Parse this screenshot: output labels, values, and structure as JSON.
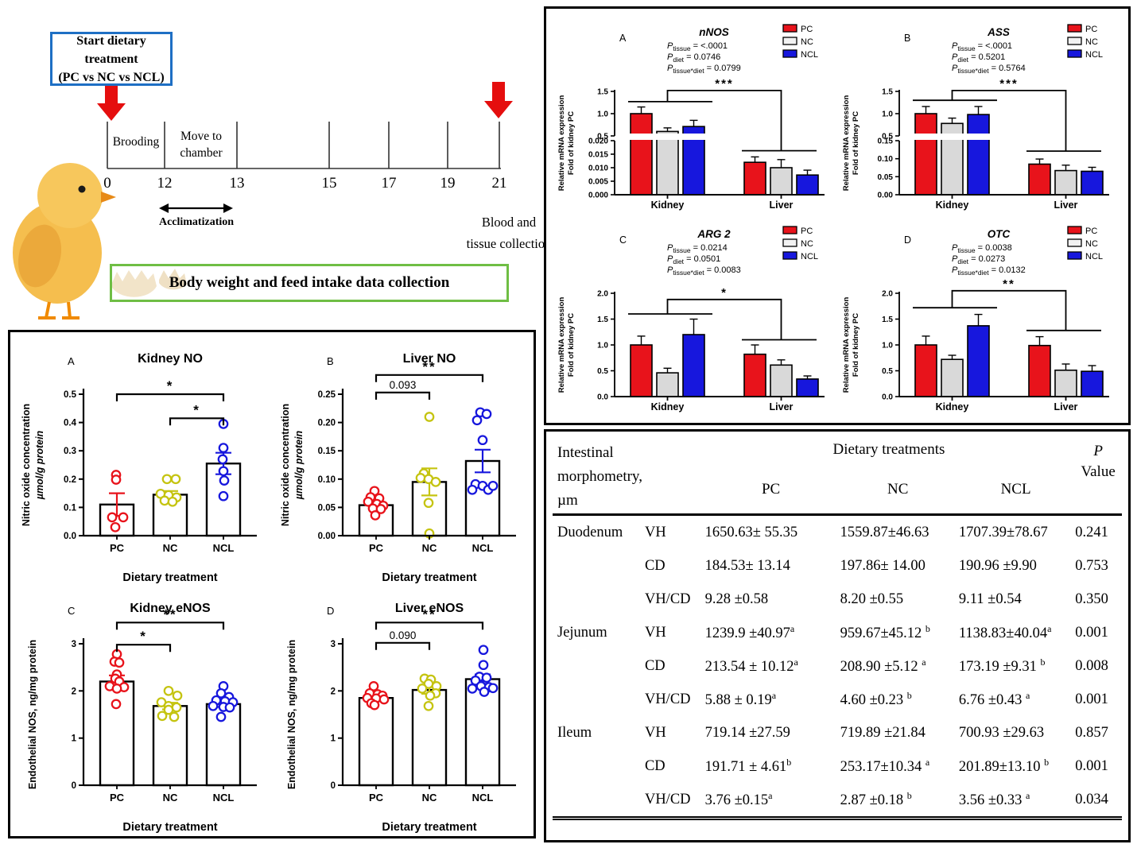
{
  "timeline": {
    "start_box_line1": "Start dietary treatment",
    "start_box_line2": "(PC vs NC vs NCL)",
    "ticks": [
      "0",
      "12",
      "13",
      "15",
      "17",
      "19",
      "21"
    ],
    "brooding": "Brooding",
    "move_line1": "Move to",
    "move_line2": "chamber",
    "acclimatization": "Acclimatization",
    "end_line1": "Blood and",
    "end_line2": "tissue collection",
    "banner": "Body weight and feed intake data collection"
  },
  "legend": {
    "labels": [
      "PC",
      "NC",
      "NCL"
    ]
  },
  "colors": {
    "pc": "#e8131b",
    "nc_fill": "#d9d9d9",
    "nc_swatch": "#f2f2f2",
    "nc_points": "#c5c411",
    "ncl": "#1717dd",
    "arrow_red": "#e50e0e",
    "box_blue": "#1e6fc4",
    "box_green": "#6fbe44"
  },
  "chart_data": [
    {
      "id": "nNOS",
      "panel": "A",
      "type": "bar-split",
      "title": "nNOS",
      "p_lines": [
        [
          "tissue",
          "= <.0001"
        ],
        [
          "diet",
          "= 0.0746"
        ],
        [
          "tissue*diet",
          "= 0.0799"
        ]
      ],
      "sig": "***",
      "ylabel": [
        "Relative mRNA expression",
        "Fold of kidney PC"
      ],
      "series": [
        "PC",
        "NC",
        "NCL"
      ],
      "categories": [
        "Kidney",
        "Liver"
      ],
      "upper": {
        "range": [
          0.5,
          1.5
        ],
        "ticks": [
          "0.5",
          "1.0",
          "1.5"
        ]
      },
      "lower": {
        "range": [
          0,
          0.02
        ],
        "ticks": [
          "0.000",
          "0.005",
          "0.010",
          "0.015",
          "0.020"
        ]
      },
      "kidney": {
        "values": [
          1.0,
          0.6,
          0.71
        ],
        "errors": [
          0.15,
          0.08,
          0.14
        ]
      },
      "liver": {
        "values": [
          0.012,
          0.01,
          0.0073
        ],
        "errors": [
          0.002,
          0.003,
          0.0018
        ]
      },
      "bracket": {
        "kidney": 1.27,
        "top": 1.52,
        "liver": 0.0163
      }
    },
    {
      "id": "ASS",
      "panel": "B",
      "type": "bar-split",
      "title": "ASS",
      "p_lines": [
        [
          "tissue",
          "= <.0001"
        ],
        [
          "diet",
          "= 0.5201"
        ],
        [
          "tissue*diet",
          "= 0.5764"
        ]
      ],
      "sig": "***",
      "ylabel": [
        "Relative mRNA expression",
        "Fold of kidney PC"
      ],
      "series": [
        "PC",
        "NC",
        "NCL"
      ],
      "categories": [
        "Kidney",
        "Liver"
      ],
      "upper": {
        "range": [
          0.5,
          1.5
        ],
        "ticks": [
          "0.5",
          "1.0",
          "1.5"
        ]
      },
      "lower": {
        "range": [
          0,
          0.15
        ],
        "ticks": [
          "0.00",
          "0.05",
          "0.10",
          "0.15"
        ]
      },
      "kidney": {
        "values": [
          1.0,
          0.78,
          0.98
        ],
        "errors": [
          0.16,
          0.12,
          0.18
        ]
      },
      "liver": {
        "values": [
          0.085,
          0.067,
          0.065
        ],
        "errors": [
          0.014,
          0.015,
          0.011
        ]
      },
      "bracket": {
        "kidney": 1.3,
        "top": 1.52,
        "liver": 0.121
      }
    },
    {
      "id": "ARG 2",
      "panel": "C",
      "type": "bar",
      "title": "ARG 2",
      "p_lines": [
        [
          "tissue",
          "= 0.0214"
        ],
        [
          "diet",
          "= 0.0501"
        ],
        [
          "tissue*diet",
          "= 0.0083"
        ]
      ],
      "sig": "*",
      "ylabel": [
        "Relative mRNA expression",
        "Fold of kidney PC"
      ],
      "series": [
        "PC",
        "NC",
        "NCL"
      ],
      "categories": [
        "Kidney",
        "Liver"
      ],
      "axis": {
        "range": [
          0,
          2
        ],
        "ticks": [
          "0.0",
          "0.5",
          "1.0",
          "1.5",
          "2.0"
        ]
      },
      "kidney": {
        "values": [
          1.0,
          0.46,
          1.2
        ],
        "errors": [
          0.17,
          0.09,
          0.3
        ]
      },
      "liver": {
        "values": [
          0.82,
          0.61,
          0.34
        ],
        "errors": [
          0.18,
          0.1,
          0.06
        ]
      },
      "bracket": {
        "kidney": 1.6,
        "top": 1.88,
        "liver": 1.1
      }
    },
    {
      "id": "OTC",
      "panel": "D",
      "type": "bar",
      "title": "OTC",
      "p_lines": [
        [
          "tissue",
          "= 0.0038"
        ],
        [
          "diet",
          "= 0.0273"
        ],
        [
          "tissue*diet",
          "= 0.0132"
        ]
      ],
      "sig": "**",
      "ylabel": [
        "Relative mRNA expression",
        "Fold of kidney PC"
      ],
      "series": [
        "PC",
        "NC",
        "NCL"
      ],
      "categories": [
        "Kidney",
        "Liver"
      ],
      "axis": {
        "range": [
          0,
          2
        ],
        "ticks": [
          "0.0",
          "0.5",
          "1.0",
          "1.5",
          "2.0"
        ]
      },
      "kidney": {
        "values": [
          1.0,
          0.72,
          1.37
        ],
        "errors": [
          0.17,
          0.08,
          0.22
        ]
      },
      "liver": {
        "values": [
          0.99,
          0.51,
          0.49
        ],
        "errors": [
          0.17,
          0.12,
          0.11
        ]
      },
      "bracket": {
        "kidney": 1.72,
        "top": 2.05,
        "liver": 1.28
      }
    },
    {
      "id": "kidney-no",
      "panel": "A",
      "type": "scatter-bar",
      "title": "Kidney NO",
      "ylabel": [
        "Nitric oxide concentration",
        "µmol/g protein"
      ],
      "xlabel": "Dietary treatment",
      "categories": [
        "PC",
        "NC",
        "NCL"
      ],
      "ylim": [
        0,
        0.5
      ],
      "yticks": [
        "0.0",
        "0.1",
        "0.2",
        "0.3",
        "0.4",
        "0.5"
      ],
      "means": [
        0.11,
        0.145,
        0.255
      ],
      "errors": [
        0.04,
        0.013,
        0.038
      ],
      "points": [
        [
          [
            -1,
            0.215
          ],
          [
            -1,
            0.198
          ],
          [
            -6,
            0.065
          ],
          [
            8,
            0.065
          ],
          [
            -2,
            0.03
          ]
        ],
        [
          [
            -4,
            0.2
          ],
          [
            7,
            0.2
          ],
          [
            -12,
            0.148
          ],
          [
            -2,
            0.143
          ],
          [
            8,
            0.135
          ],
          [
            -7,
            0.124
          ],
          [
            3,
            0.12
          ]
        ],
        [
          [
            0,
            0.395
          ],
          [
            0,
            0.31
          ],
          [
            -1,
            0.27
          ],
          [
            0,
            0.228
          ],
          [
            1,
            0.195
          ],
          [
            0,
            0.14
          ]
        ]
      ],
      "brackets": [
        {
          "from": 0,
          "to": 2,
          "label": "*",
          "v": 0.5
        },
        {
          "from": 1,
          "to": 2,
          "label": "*",
          "v": 0.415
        }
      ]
    },
    {
      "id": "liver-no",
      "panel": "B",
      "type": "scatter-bar",
      "title": "Liver NO",
      "ylabel": [
        "Nitric oxide concentration",
        "µmol/g protein"
      ],
      "xlabel": "Dietary treatment",
      "categories": [
        "PC",
        "NC",
        "NCL"
      ],
      "ylim": [
        0,
        0.25
      ],
      "yticks": [
        "0.00",
        "0.05",
        "0.10",
        "0.15",
        "0.20",
        "0.25"
      ],
      "means": [
        0.054,
        0.095,
        0.132
      ],
      "errors": [
        0.006,
        0.024,
        0.02
      ],
      "points": [
        [
          [
            -2,
            0.079
          ],
          [
            -7,
            0.068
          ],
          [
            4,
            0.066
          ],
          [
            -10,
            0.06
          ],
          [
            1,
            0.056
          ],
          [
            9,
            0.053
          ],
          [
            -4,
            0.048
          ],
          [
            6,
            0.047
          ],
          [
            -1,
            0.036
          ]
        ],
        [
          [
            0,
            0.21
          ],
          [
            -7,
            0.11
          ],
          [
            -11,
            0.102
          ],
          [
            -1,
            0.1
          ],
          [
            8,
            0.095
          ],
          [
            -1,
            0.058
          ],
          [
            0,
            0.004
          ]
        ],
        [
          [
            -3,
            0.218
          ],
          [
            5,
            0.215
          ],
          [
            -7,
            0.204
          ],
          [
            0,
            0.169
          ],
          [
            -9,
            0.091
          ],
          [
            0,
            0.088
          ],
          [
            -13,
            0.081
          ],
          [
            7,
            0.081
          ],
          [
            13,
            0.088
          ]
        ]
      ],
      "brackets": [
        {
          "from": 0,
          "to": 2,
          "label": "**",
          "v": 0.284
        },
        {
          "from": 0,
          "to": 1,
          "label": "0.093",
          "v": 0.253
        }
      ]
    },
    {
      "id": "kidney-enos",
      "panel": "C",
      "type": "scatter-bar",
      "title": "Kidney eNOS",
      "ylabel": [
        "Endothelial NOS, ng/mg protein"
      ],
      "xlabel": "Dietary treatment",
      "categories": [
        "PC",
        "NC",
        "NCL"
      ],
      "ylim": [
        0,
        3
      ],
      "yticks": [
        "0",
        "1",
        "2",
        "3"
      ],
      "means": [
        2.2,
        1.68,
        1.72
      ],
      "errors": [
        0.13,
        0.07,
        0.06
      ],
      "points": [
        [
          [
            0,
            2.78
          ],
          [
            -3,
            2.62
          ],
          [
            3,
            2.6
          ],
          [
            0,
            2.35
          ],
          [
            -2,
            2.26
          ],
          [
            3,
            2.2
          ],
          [
            -9,
            2.1
          ],
          [
            9,
            2.08
          ],
          [
            0,
            2.05
          ],
          [
            -1,
            1.72
          ]
        ],
        [
          [
            -2,
            2.0
          ],
          [
            9,
            1.9
          ],
          [
            -11,
            1.76
          ],
          [
            -2,
            1.68
          ],
          [
            8,
            1.65
          ],
          [
            -2,
            1.6
          ],
          [
            -10,
            1.47
          ],
          [
            5,
            1.45
          ]
        ],
        [
          [
            0,
            2.1
          ],
          [
            -3,
            1.95
          ],
          [
            7,
            1.87
          ],
          [
            -9,
            1.8
          ],
          [
            2,
            1.78
          ],
          [
            12,
            1.76
          ],
          [
            -13,
            1.68
          ],
          [
            0,
            1.66
          ],
          [
            8,
            1.65
          ],
          [
            -3,
            1.45
          ]
        ]
      ],
      "brackets": [
        {
          "from": 0,
          "to": 2,
          "label": "**",
          "v": 3.45
        },
        {
          "from": 0,
          "to": 1,
          "label": "*",
          "v": 2.98
        }
      ]
    },
    {
      "id": "liver-enos",
      "panel": "D",
      "type": "scatter-bar",
      "title": "Liver eNOS",
      "ylabel": [
        "Endothelial NOS, ng/mg protein"
      ],
      "xlabel": "Dietary treatment",
      "categories": [
        "PC",
        "NC",
        "NCL"
      ],
      "ylim": [
        0,
        3
      ],
      "yticks": [
        "0",
        "1",
        "2",
        "3"
      ],
      "means": [
        1.85,
        2.02,
        2.25
      ],
      "errors": [
        0.05,
        0.08,
        0.1
      ],
      "points": [
        [
          [
            -3,
            2.1
          ],
          [
            -8,
            1.95
          ],
          [
            2,
            1.93
          ],
          [
            8,
            1.9
          ],
          [
            -11,
            1.85
          ],
          [
            0,
            1.84
          ],
          [
            10,
            1.82
          ],
          [
            -6,
            1.74
          ],
          [
            -2,
            1.7
          ]
        ],
        [
          [
            -6,
            2.26
          ],
          [
            2,
            2.24
          ],
          [
            -1,
            2.15
          ],
          [
            9,
            2.1
          ],
          [
            -9,
            2.05
          ],
          [
            8,
            1.95
          ],
          [
            1,
            1.9
          ],
          [
            -1,
            1.68
          ]
        ],
        [
          [
            1,
            2.87
          ],
          [
            1,
            2.55
          ],
          [
            -4,
            2.3
          ],
          [
            5,
            2.28
          ],
          [
            -9,
            2.22
          ],
          [
            -2,
            2.1
          ],
          [
            8,
            2.08
          ],
          [
            -13,
            2.05
          ],
          [
            13,
            2.06
          ],
          [
            2,
            1.98
          ]
        ]
      ],
      "brackets": [
        {
          "from": 0,
          "to": 2,
          "label": "**",
          "v": 3.45
        },
        {
          "from": 0,
          "to": 1,
          "label": "0.090",
          "v": 3.02
        }
      ]
    }
  ],
  "table": {
    "header": {
      "col1": "Intestinal morphometry, µm",
      "group": "Dietary treatments",
      "cols": [
        "PC",
        "NC",
        "NCL"
      ],
      "p_line1": "P",
      "p_line2": "Value"
    },
    "rows": [
      {
        "organ": "Duodenum",
        "measure": "VH",
        "pc": "1650.63± 55.35",
        "nc": "1559.87±46.63",
        "ncl": "1707.39±78.67",
        "p": "0.241"
      },
      {
        "organ": "",
        "measure": "CD",
        "pc": "184.53± 13.14",
        "nc": "197.86± 14.00",
        "ncl": "190.96 ±9.90",
        "p": "0.753"
      },
      {
        "organ": "",
        "measure": "VH/CD",
        "pc": "9.28 ±0.58",
        "nc": "8.20 ±0.55",
        "ncl": "9.11 ±0.54",
        "p": "0.350"
      },
      {
        "organ": "Jejunum",
        "measure": "VH",
        "pc": "1239.9 ±40.97^a",
        "nc": "959.67±45.12 ^b",
        "ncl": "1138.83±40.04^a",
        "p": "0.001"
      },
      {
        "organ": "",
        "measure": "CD",
        "pc": "213.54 ± 10.12^a",
        "nc": "208.90 ±5.12 ^a",
        "ncl": "173.19 ±9.31 ^b",
        "p": "0.008"
      },
      {
        "organ": "",
        "measure": "VH/CD",
        "pc": "5.88 ± 0.19^a",
        "nc": "4.60 ±0.23 ^b",
        "ncl": "6.76 ±0.43 ^a",
        "p": "0.001"
      },
      {
        "organ": "Ileum",
        "measure": "VH",
        "pc": "719.14 ±27.59",
        "nc": "719.89 ±21.84",
        "ncl": "700.93 ±29.63",
        "p": "0.857"
      },
      {
        "organ": "",
        "measure": "CD",
        "pc": "191.71 ± 4.61^b",
        "nc": "253.17±10.34 ^a",
        "ncl": "201.89±13.10 ^b",
        "p": "0.001"
      },
      {
        "organ": "",
        "measure": "VH/CD",
        "pc": "3.76 ±0.15^a",
        "nc": "2.87 ±0.18 ^b",
        "ncl": "3.56 ±0.33 ^a",
        "p": "0.034"
      }
    ]
  }
}
